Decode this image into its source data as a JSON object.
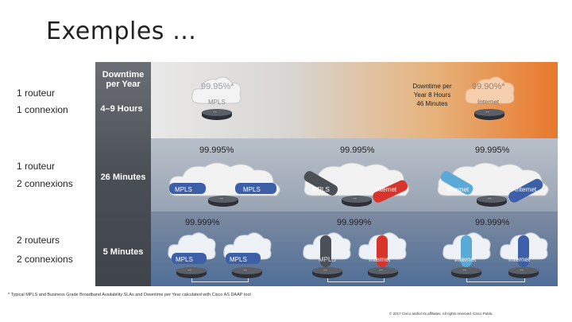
{
  "title": "Exemples …",
  "rows": [
    {
      "left1": "1 routeur",
      "left2": "1 connexion",
      "downtime_header": "Downtime per Year",
      "downtime": "4–9 Hours"
    },
    {
      "left1": "1 routeur",
      "left2": "2 connexions",
      "downtime": "26 Minutes"
    },
    {
      "left1": "2 routeurs",
      "left2": "2 connexions",
      "downtime": "5 Minutes"
    }
  ],
  "band1": {
    "mpls_pct": "99.95%*",
    "mpls_label": "MPLS",
    "internet_pct": "99.90%*",
    "internet_label": "Internet",
    "mid_text": "Downtime per Year 8 Hours 46 Minutes"
  },
  "band2": {
    "a_pct": "99.995%",
    "a_l1": "MPLS",
    "a_l2": "MPLS",
    "b_pct": "99.995%",
    "b_l1": "MPLS",
    "b_l2": "Internet",
    "c_pct": "99.995%",
    "c_l1": "Internet",
    "c_l2": "Internet"
  },
  "band3": {
    "a_pct": "99.999%",
    "a_l1": "MPLS",
    "a_l2": "MPLS",
    "b_pct": "99.999%",
    "b_l1": "MPLS",
    "b_l2": "Internet",
    "c_pct": "99.999%",
    "c_l1": "Internet",
    "c_l2": "Internet"
  },
  "footnote": "* Typical MPLS and Business Grade Broadband Availability SLAs and Downtime per Year calculated with Cisco AS DAAP tool",
  "copyright": "© 2017 Cisco and/or its affiliates. All rights reserved. Cisco Public",
  "colors": {
    "orange": "#e8782c",
    "blue": "#4f6e97",
    "mpls_tube": "#3d5fa8",
    "internet_tube": "#d9342b"
  }
}
